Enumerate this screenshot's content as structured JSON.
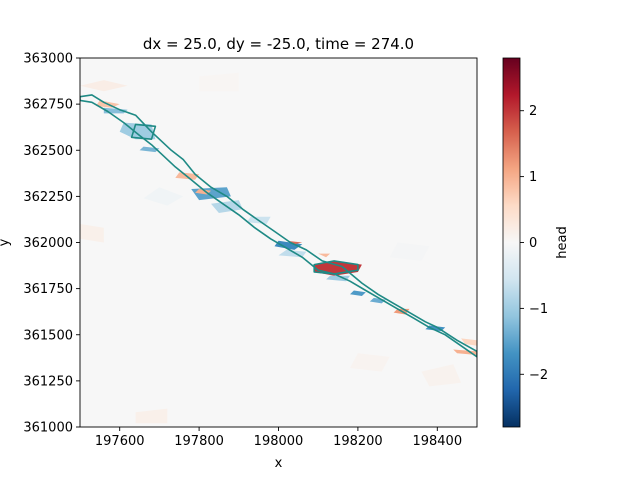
{
  "chart_data": {
    "type": "heatmap",
    "title": "dx = 25.0, dy = -25.0, time = 274.0",
    "xlabel": "x",
    "ylabel": "y",
    "xlim": [
      197500,
      198500
    ],
    "ylim": [
      361000,
      363000
    ],
    "x_ticks": [
      197600,
      197800,
      198000,
      198200,
      198400
    ],
    "x_tick_labels": [
      "197600",
      "197800",
      "198000",
      "198200",
      "198400"
    ],
    "y_ticks": [
      361000,
      361250,
      361500,
      361750,
      362000,
      362250,
      362500,
      362750,
      363000
    ],
    "y_tick_labels": [
      "361000",
      "361250",
      "361500",
      "361750",
      "362000",
      "362250",
      "362500",
      "362750",
      "363000"
    ],
    "colorbar": {
      "label": "head",
      "range": [
        -2.8,
        2.8
      ],
      "ticks": [
        -2,
        -1,
        0,
        1,
        2
      ],
      "tick_labels": [
        "−2",
        "−1",
        "0",
        "1",
        "2"
      ],
      "colormap": "RdBu_r"
    },
    "river_outline_color": "#1f8a85",
    "river_polygons": [
      {
        "points": [
          [
            197500,
            362790
          ],
          [
            197530,
            362800
          ],
          [
            197560,
            362760
          ],
          [
            197600,
            362720
          ],
          [
            197640,
            362690
          ],
          [
            197680,
            362600
          ],
          [
            197700,
            362560
          ],
          [
            197730,
            362500
          ],
          [
            197760,
            362450
          ],
          [
            197790,
            362370
          ],
          [
            197830,
            362300
          ],
          [
            197870,
            362250
          ],
          [
            197910,
            362180
          ],
          [
            197950,
            362120
          ],
          [
            197990,
            362060
          ],
          [
            198030,
            362000
          ],
          [
            198070,
            361960
          ],
          [
            198110,
            361900
          ],
          [
            198160,
            361870
          ],
          [
            198210,
            361780
          ],
          [
            198250,
            361720
          ],
          [
            198290,
            361670
          ],
          [
            198330,
            361620
          ],
          [
            198370,
            361570
          ],
          [
            198400,
            361540
          ],
          [
            198450,
            361470
          ],
          [
            198500,
            361410
          ],
          [
            198500,
            361380
          ],
          [
            198460,
            361440
          ],
          [
            198420,
            361500
          ],
          [
            198380,
            361540
          ],
          [
            198340,
            361590
          ],
          [
            198300,
            361640
          ],
          [
            198260,
            361690
          ],
          [
            198220,
            361740
          ],
          [
            198180,
            361790
          ],
          [
            198140,
            361830
          ],
          [
            198100,
            361850
          ],
          [
            198060,
            361920
          ],
          [
            198020,
            361970
          ],
          [
            197980,
            362020
          ],
          [
            197940,
            362080
          ],
          [
            197900,
            362150
          ],
          [
            197860,
            362210
          ],
          [
            197820,
            362270
          ],
          [
            197780,
            362340
          ],
          [
            197740,
            362410
          ],
          [
            197710,
            362470
          ],
          [
            197680,
            362530
          ],
          [
            197650,
            362580
          ],
          [
            197610,
            362650
          ],
          [
            197570,
            362710
          ],
          [
            197530,
            362760
          ],
          [
            197500,
            362770
          ]
        ]
      },
      {
        "points": [
          [
            198090,
            361880
          ],
          [
            198140,
            361900
          ],
          [
            198200,
            361880
          ],
          [
            198200,
            361850
          ],
          [
            198140,
            361830
          ],
          [
            198090,
            361840
          ]
        ]
      },
      {
        "points": [
          [
            197640,
            362640
          ],
          [
            197690,
            362630
          ],
          [
            197680,
            362560
          ],
          [
            197630,
            362570
          ]
        ]
      }
    ],
    "value_patches": [
      {
        "points": [
          [
            198090,
            361880
          ],
          [
            198140,
            361900
          ],
          [
            198210,
            361880
          ],
          [
            198200,
            361840
          ],
          [
            198140,
            361820
          ],
          [
            198090,
            361840
          ]
        ],
        "value": 2.0
      },
      {
        "points": [
          [
            198000,
            362010
          ],
          [
            198060,
            361990
          ],
          [
            198040,
            361960
          ],
          [
            197990,
            361980
          ]
        ],
        "value": -1.8
      },
      {
        "points": [
          [
            197610,
            362650
          ],
          [
            197680,
            362640
          ],
          [
            197690,
            362560
          ],
          [
            197640,
            362560
          ],
          [
            197600,
            362600
          ]
        ],
        "value": -1.0
      },
      {
        "points": [
          [
            197780,
            362290
          ],
          [
            197870,
            362300
          ],
          [
            197880,
            362250
          ],
          [
            197800,
            362230
          ]
        ],
        "value": -1.5
      },
      {
        "points": [
          [
            197830,
            362210
          ],
          [
            197900,
            362230
          ],
          [
            197910,
            362180
          ],
          [
            197850,
            362160
          ]
        ],
        "value": -0.8
      },
      {
        "points": [
          [
            197750,
            362380
          ],
          [
            197800,
            362370
          ],
          [
            197790,
            362340
          ],
          [
            197740,
            362350
          ]
        ],
        "value": 0.9
      },
      {
        "points": [
          [
            197800,
            362290
          ],
          [
            197830,
            362280
          ],
          [
            197820,
            362260
          ],
          [
            197790,
            362270
          ]
        ],
        "value": 1.0
      },
      {
        "points": [
          [
            198020,
            362010
          ],
          [
            198060,
            362000
          ],
          [
            198040,
            361990
          ]
        ],
        "value": 1.6
      },
      {
        "points": [
          [
            198100,
            361940
          ],
          [
            198130,
            361940
          ],
          [
            198120,
            361920
          ]
        ],
        "value": 0.9
      },
      {
        "points": [
          [
            198300,
            361640
          ],
          [
            198330,
            361640
          ],
          [
            198320,
            361610
          ],
          [
            198290,
            361620
          ]
        ],
        "value": 1.2
      },
      {
        "points": [
          [
            198440,
            361420
          ],
          [
            198500,
            361410
          ],
          [
            198500,
            361390
          ],
          [
            198450,
            361400
          ]
        ],
        "value": 1.0
      },
      {
        "points": [
          [
            198460,
            361480
          ],
          [
            198500,
            361470
          ],
          [
            198500,
            361440
          ],
          [
            198470,
            361450
          ]
        ],
        "value": 0.6
      },
      {
        "points": [
          [
            197550,
            362770
          ],
          [
            197600,
            362750
          ],
          [
            197580,
            362730
          ],
          [
            197540,
            362740
          ]
        ],
        "value": 0.8
      },
      {
        "points": [
          [
            197560,
            362730
          ],
          [
            197620,
            362720
          ],
          [
            197610,
            362700
          ],
          [
            197560,
            362700
          ]
        ],
        "value": -1.2
      },
      {
        "points": [
          [
            198020,
            361960
          ],
          [
            198070,
            361950
          ],
          [
            198060,
            361920
          ],
          [
            198000,
            361930
          ]
        ],
        "value": -0.7
      },
      {
        "points": [
          [
            198190,
            361740
          ],
          [
            198220,
            361730
          ],
          [
            198210,
            361710
          ],
          [
            198180,
            361720
          ]
        ],
        "value": -1.6
      },
      {
        "points": [
          [
            198240,
            361700
          ],
          [
            198270,
            361690
          ],
          [
            198260,
            361670
          ],
          [
            198230,
            361680
          ]
        ],
        "value": -1.4
      },
      {
        "points": [
          [
            198380,
            361550
          ],
          [
            198420,
            361540
          ],
          [
            198410,
            361520
          ],
          [
            198370,
            361530
          ]
        ],
        "value": -1.7
      },
      {
        "points": [
          [
            197930,
            362140
          ],
          [
            197980,
            362140
          ],
          [
            197970,
            362100
          ],
          [
            197920,
            362110
          ]
        ],
        "value": -0.6
      },
      {
        "points": [
          [
            198130,
            361820
          ],
          [
            198180,
            361820
          ],
          [
            198170,
            361790
          ],
          [
            198120,
            361800
          ]
        ],
        "value": -1.0
      },
      {
        "points": [
          [
            197660,
            362520
          ],
          [
            197700,
            362510
          ],
          [
            197690,
            362490
          ],
          [
            197650,
            362500
          ]
        ],
        "value": -1.3
      }
    ],
    "background_patches": [
      {
        "points": [
          [
            197500,
            362850
          ],
          [
            197560,
            362880
          ],
          [
            197620,
            362850
          ],
          [
            197560,
            362820
          ]
        ],
        "value": 0.2
      },
      {
        "points": [
          [
            197500,
            362100
          ],
          [
            197560,
            362080
          ],
          [
            197560,
            362000
          ],
          [
            197500,
            362020
          ]
        ],
        "value": 0.15
      },
      {
        "points": [
          [
            197640,
            361080
          ],
          [
            197720,
            361100
          ],
          [
            197720,
            361020
          ],
          [
            197640,
            361020
          ]
        ],
        "value": 0.15
      },
      {
        "points": [
          [
            198360,
            361300
          ],
          [
            198440,
            361340
          ],
          [
            198460,
            361240
          ],
          [
            198380,
            361220
          ]
        ],
        "value": 0.1
      },
      {
        "points": [
          [
            197700,
            362300
          ],
          [
            197760,
            362250
          ],
          [
            197720,
            362200
          ],
          [
            197660,
            362240
          ]
        ],
        "value": -0.1
      },
      {
        "points": [
          [
            198300,
            362000
          ],
          [
            198380,
            361980
          ],
          [
            198360,
            361900
          ],
          [
            198280,
            361920
          ]
        ],
        "value": -0.05
      },
      {
        "points": [
          [
            197800,
            362900
          ],
          [
            197900,
            362920
          ],
          [
            197900,
            362820
          ],
          [
            197800,
            362820
          ]
        ],
        "value": 0.05
      },
      {
        "points": [
          [
            198200,
            361400
          ],
          [
            198280,
            361380
          ],
          [
            198260,
            361300
          ],
          [
            198180,
            361320
          ]
        ],
        "value": 0.08
      }
    ]
  }
}
